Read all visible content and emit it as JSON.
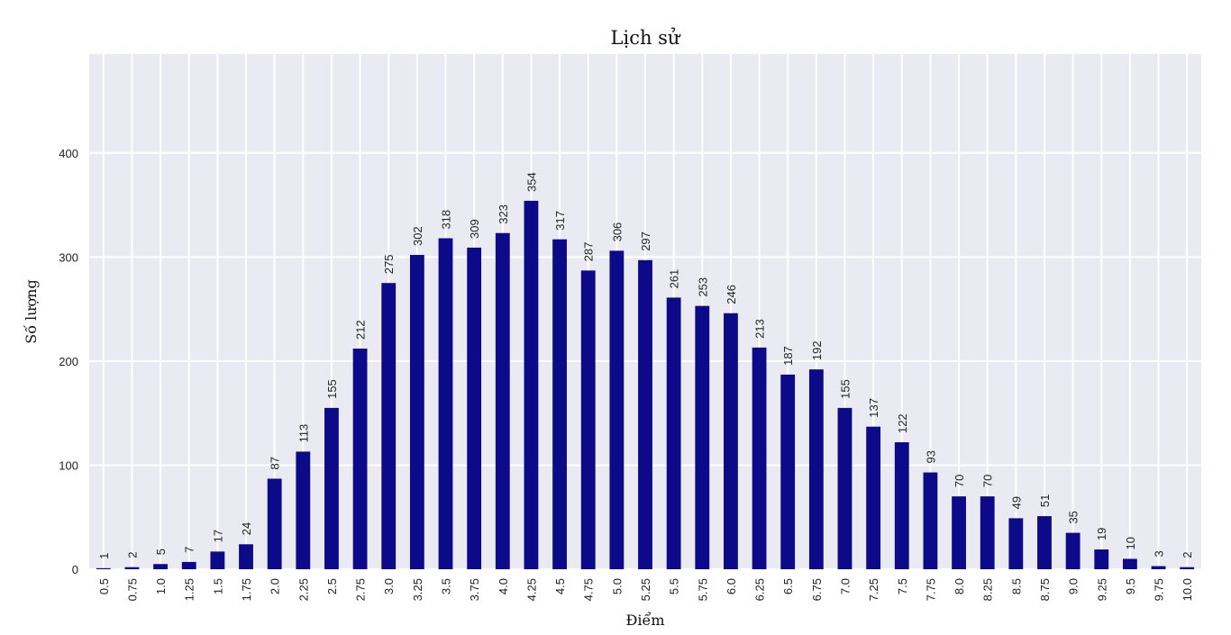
{
  "chart_data": {
    "type": "bar",
    "title": "Lịch sử",
    "xlabel": "Điểm",
    "ylabel": "Số lượng",
    "ylim": [
      0,
      495
    ],
    "yticks": [
      0,
      100,
      200,
      300,
      400
    ],
    "categories": [
      "0.5",
      "0.75",
      "1.0",
      "1.25",
      "1.5",
      "1.75",
      "2.0",
      "2.25",
      "2.5",
      "2.75",
      "3.0",
      "3.25",
      "3.5",
      "3.75",
      "4.0",
      "4.25",
      "4.5",
      "4.75",
      "5.0",
      "5.25",
      "5.5",
      "5.75",
      "6.0",
      "6.25",
      "6.5",
      "6.75",
      "7.0",
      "7.25",
      "7.5",
      "7.75",
      "8.0",
      "8.25",
      "8.5",
      "8.75",
      "9.0",
      "9.25",
      "9.5",
      "9.75",
      "10.0"
    ],
    "values": [
      1,
      2,
      5,
      7,
      17,
      24,
      87,
      113,
      155,
      212,
      275,
      302,
      318,
      309,
      323,
      354,
      317,
      287,
      306,
      297,
      261,
      253,
      246,
      213,
      187,
      192,
      155,
      137,
      122,
      93,
      70,
      70,
      49,
      51,
      35,
      19,
      10,
      3,
      2
    ],
    "grid": true,
    "bar_color": "#0d0a8a",
    "background_color": "#eaeaf2",
    "grid_color": "#ffffff"
  }
}
